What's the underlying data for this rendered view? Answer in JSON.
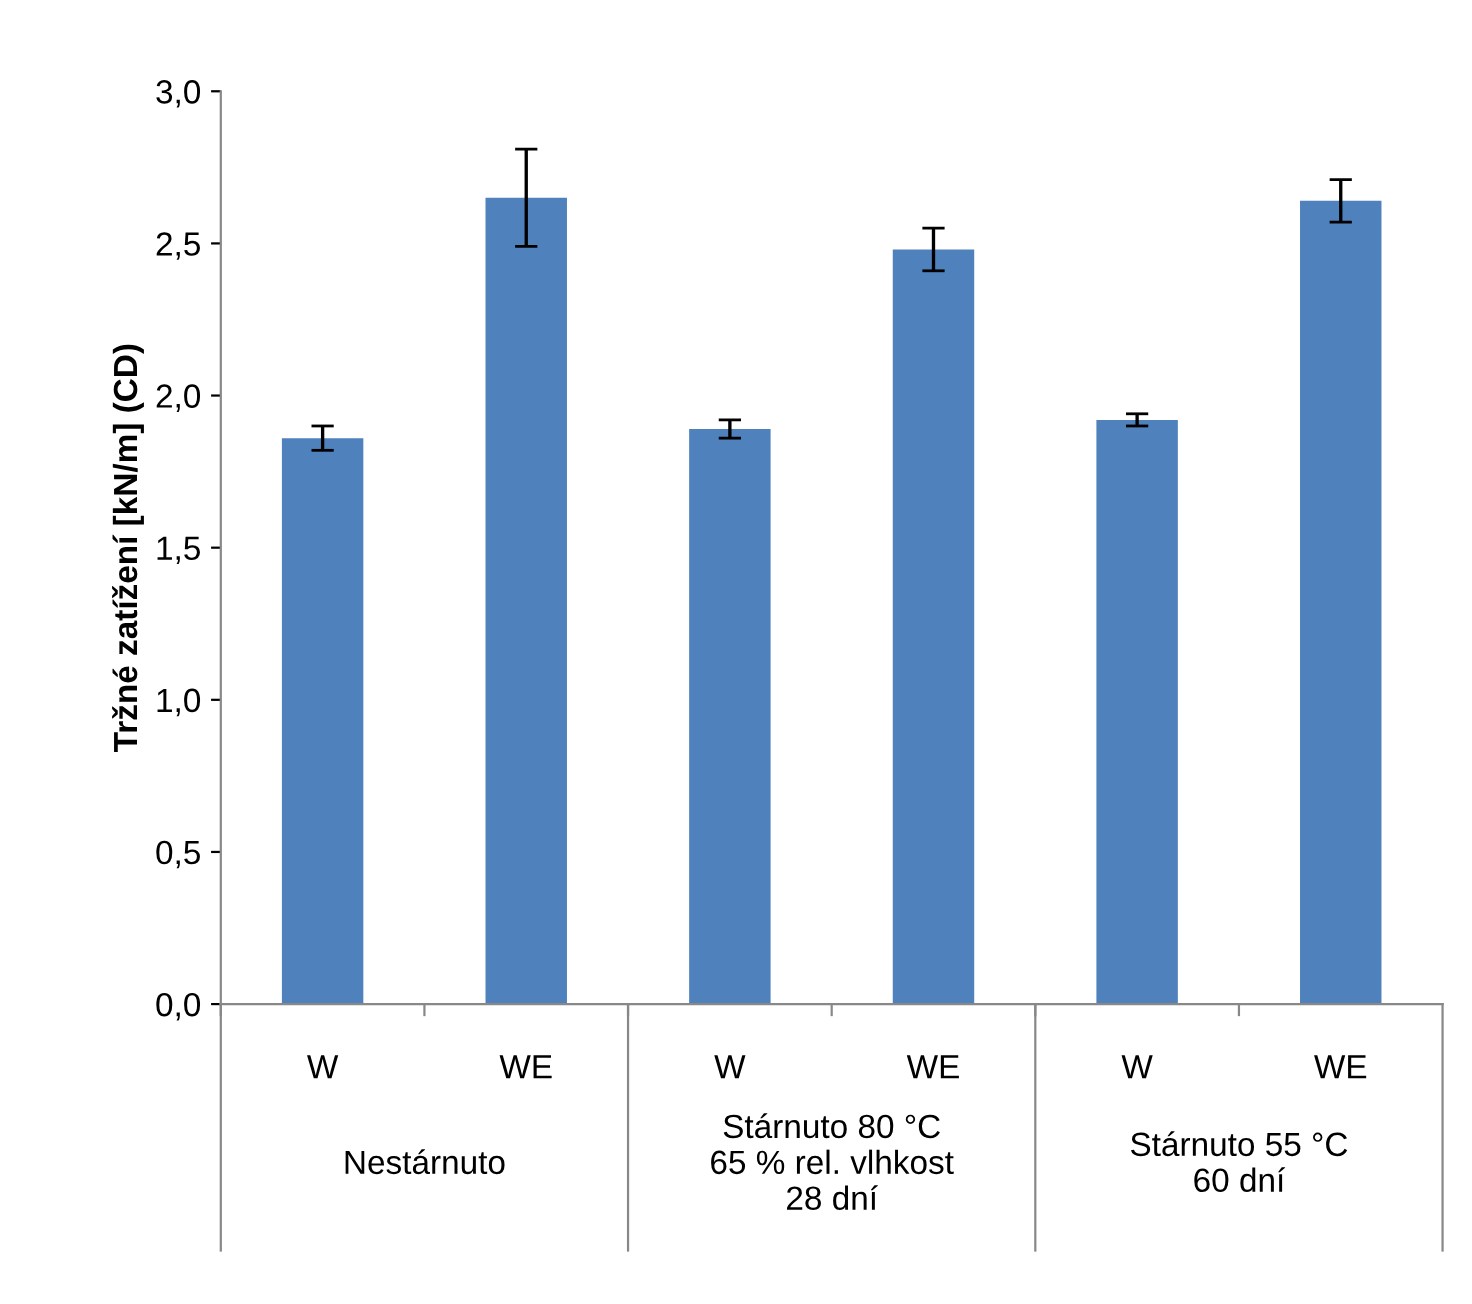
{
  "chart_data": {
    "type": "bar",
    "ylabel": "Tržné zatížení [kN/m] (CD)",
    "categories": [
      "W",
      "WE",
      "W",
      "WE",
      "W",
      "WE"
    ],
    "values": [
      1.86,
      2.65,
      1.89,
      2.48,
      1.92,
      2.64
    ],
    "errors": [
      0.04,
      0.16,
      0.03,
      0.07,
      0.02,
      0.07
    ],
    "color": "#4f81bd",
    "ylim": [
      0,
      3
    ],
    "yticks": [
      {
        "value": 0,
        "label": "0,0"
      },
      {
        "value": 0.5,
        "label": "0,5"
      },
      {
        "value": 1,
        "label": "1,0"
      },
      {
        "value": 1.5,
        "label": "1,5"
      },
      {
        "value": 2,
        "label": "2,0"
      },
      {
        "value": 2.5,
        "label": "2,5"
      },
      {
        "value": 3,
        "label": "3,0"
      }
    ],
    "grid": false,
    "annotations": [
      "Nestárnuto",
      "Stárnuto 80 °C\n65 % rel. vlhkost\n28 dní",
      "Stárnuto 55 °C\n60 dní"
    ]
  }
}
